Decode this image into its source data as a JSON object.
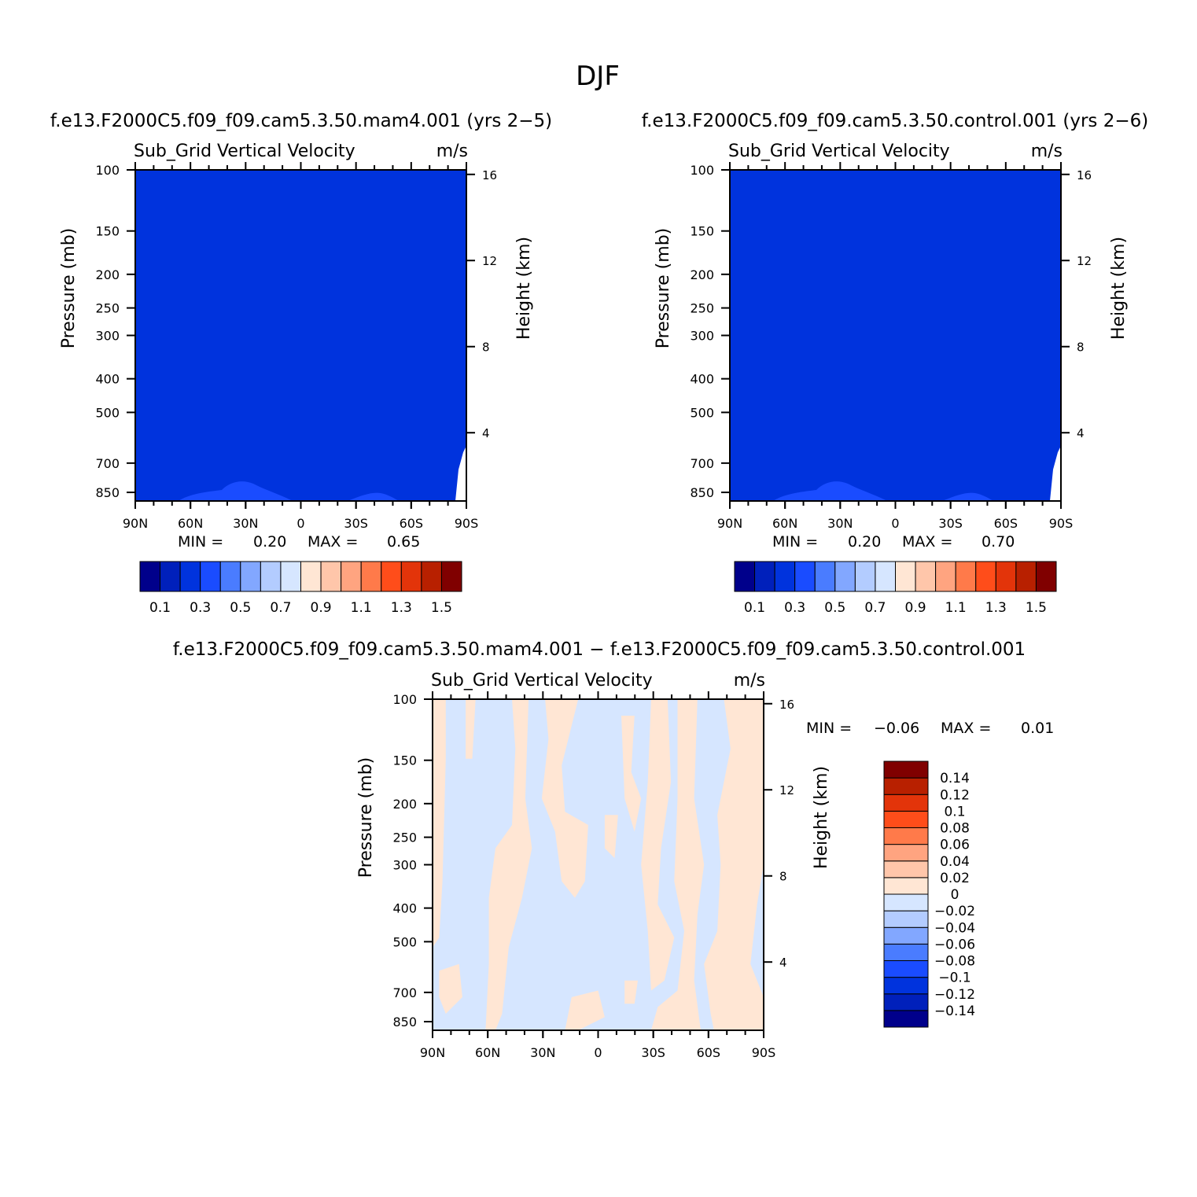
{
  "title": "DJF",
  "panels": [
    {
      "id": "p1",
      "case_title": "f.e13.F2000C5.f09_f09.cam5.3.50.mam4.001 (yrs 2−5)",
      "variable": "Sub_Grid Vertical Velocity",
      "units": "m/s",
      "min_label": "MIN =",
      "min_value": "0.20",
      "max_label": "MAX =",
      "max_value": "0.65"
    },
    {
      "id": "p2",
      "case_title": "f.e13.F2000C5.f09_f09.cam5.3.50.control.001 (yrs 2−6)",
      "variable": "Sub_Grid Vertical Velocity",
      "units": "m/s",
      "min_label": "MIN =",
      "min_value": "0.20",
      "max_label": "MAX =",
      "max_value": "0.70"
    },
    {
      "id": "p3",
      "case_title": "f.e13.F2000C5.f09_f09.cam5.3.50.mam4.001 − f.e13.F2000C5.f09_f09.cam5.3.50.control.001",
      "variable": "Sub_Grid Vertical Velocity",
      "units": "m/s",
      "min_label": "MIN =",
      "min_value": "−0.06",
      "max_label": "MAX =",
      "max_value": "0.01"
    }
  ],
  "axes": {
    "left_label": "Pressure (mb)",
    "right_label": "Height (km)",
    "pressure_ticks": [
      100,
      150,
      200,
      250,
      300,
      400,
      500,
      700,
      850
    ],
    "height_ticks": [
      4,
      8,
      12,
      16
    ],
    "lat_ticks": [
      "90N",
      "60N",
      "30N",
      "0",
      "30S",
      "60S",
      "90S"
    ]
  },
  "colorbars": {
    "abs_colors": [
      "#00008b",
      "#0020bb",
      "#0033dd",
      "#1a4cff",
      "#4a7cff",
      "#82a7ff",
      "#b3ccff",
      "#d6e6ff",
      "#ffe6d4",
      "#ffc6aa",
      "#ffa480",
      "#ff7a4a",
      "#ff4d1a",
      "#e3340a",
      "#b82000",
      "#800000"
    ],
    "abs_labels": [
      "0.1",
      "0.3",
      "0.5",
      "0.7",
      "0.9",
      "1.1",
      "1.3",
      "1.5"
    ],
    "diff_colors": [
      "#00008b",
      "#0020bb",
      "#0033dd",
      "#1a4cff",
      "#4a7cff",
      "#82a7ff",
      "#b3ccff",
      "#d6e6ff",
      "#ffe6d4",
      "#ffc6aa",
      "#ffa480",
      "#ff7a4a",
      "#ff4d1a",
      "#e3340a",
      "#b82000",
      "#800000"
    ],
    "diff_labels": [
      "0.14",
      "0.12",
      "0.1",
      "0.08",
      "0.06",
      "0.04",
      "0.02",
      "0",
      "−0.02",
      "−0.04",
      "−0.06",
      "−0.08",
      "−0.1",
      "−0.12",
      "−0.14"
    ]
  },
  "chart_data": [
    {
      "type": "heatmap",
      "title": "Sub_Grid Vertical Velocity",
      "xlabel": "",
      "ylabel": "Pressure (mb)",
      "y2label": "Height (km)",
      "x_range": [
        "90N",
        "90S"
      ],
      "y_range": [
        100,
        850
      ],
      "levels": [
        0.1,
        0.2,
        0.3,
        0.4,
        0.5,
        0.6,
        0.7,
        0.8,
        0.9,
        1.0,
        1.1,
        1.2,
        1.3,
        1.4,
        1.5
      ],
      "dominant_value_range": [
        0.2,
        0.3
      ],
      "min": 0.2,
      "max": 0.65
    },
    {
      "type": "heatmap",
      "title": "Sub_Grid Vertical Velocity",
      "xlabel": "",
      "ylabel": "Pressure (mb)",
      "y2label": "Height (km)",
      "x_range": [
        "90N",
        "90S"
      ],
      "y_range": [
        100,
        850
      ],
      "levels": [
        0.1,
        0.2,
        0.3,
        0.4,
        0.5,
        0.6,
        0.7,
        0.8,
        0.9,
        1.0,
        1.1,
        1.2,
        1.3,
        1.4,
        1.5
      ],
      "dominant_value_range": [
        0.2,
        0.3
      ],
      "min": 0.2,
      "max": 0.7
    },
    {
      "type": "heatmap",
      "title": "Sub_Grid Vertical Velocity",
      "xlabel": "",
      "ylabel": "Pressure (mb)",
      "y2label": "Height (km)",
      "x_range": [
        "90N",
        "90S"
      ],
      "y_range": [
        100,
        850
      ],
      "levels": [
        -0.14,
        -0.12,
        -0.1,
        -0.08,
        -0.06,
        -0.04,
        -0.02,
        0,
        0.02,
        0.04,
        0.06,
        0.08,
        0.1,
        0.12,
        0.14
      ],
      "dominant_value_range": [
        -0.02,
        0.02
      ],
      "min": -0.06,
      "max": 0.01
    }
  ]
}
